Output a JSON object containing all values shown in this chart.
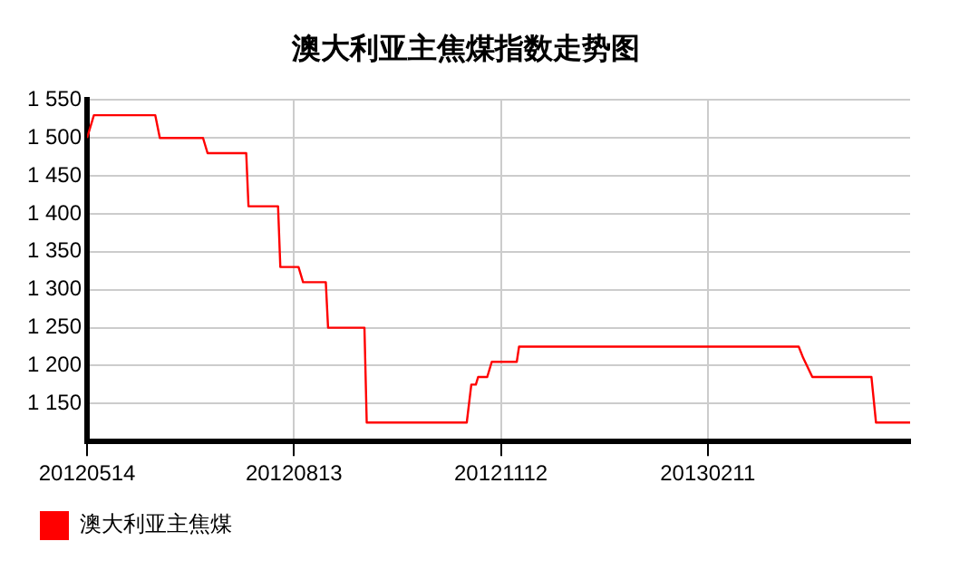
{
  "chart_data": {
    "type": "line",
    "title": "澳大利亚主焦煤指数走势图",
    "x": [
      "2012-05-14",
      "2012-05-17",
      "2012-06-13",
      "2012-06-15",
      "2012-07-04",
      "2012-07-06",
      "2012-07-23",
      "2012-07-24",
      "2012-08-06",
      "2012-08-07",
      "2012-08-15",
      "2012-08-17",
      "2012-08-27",
      "2012-08-28",
      "2012-09-13",
      "2012-09-14",
      "2012-10-28",
      "2012-10-30",
      "2012-11-01",
      "2012-11-02",
      "2012-11-06",
      "2012-11-08",
      "2012-11-19",
      "2012-11-20",
      "2013-03-23",
      "2013-03-25",
      "2013-03-29",
      "2013-04-24",
      "2013-04-26",
      "2013-05-11"
    ],
    "series": [
      {
        "name": "澳大利亚主焦煤",
        "color": "#ff0000",
        "values": [
          1500,
          1530,
          1530,
          1500,
          1500,
          1480,
          1480,
          1410,
          1410,
          1330,
          1330,
          1310,
          1310,
          1250,
          1250,
          1125,
          1125,
          1175,
          1175,
          1185,
          1185,
          1205,
          1205,
          1225,
          1225,
          1210,
          1185,
          1185,
          1125,
          1125
        ]
      }
    ],
    "xlim": [
      "2012-05-14",
      "2013-05-11"
    ],
    "xticks": [
      {
        "value": "2012-05-14",
        "label": "20120514"
      },
      {
        "value": "2012-08-13",
        "label": "20120813"
      },
      {
        "value": "2012-11-12",
        "label": "20121112"
      },
      {
        "value": "2013-02-11",
        "label": "20130211"
      }
    ],
    "ylim": [
      1100,
      1550
    ],
    "yticks": [
      {
        "value": 1150,
        "label": "1 150"
      },
      {
        "value": 1200,
        "label": "1 200"
      },
      {
        "value": 1250,
        "label": "1 250"
      },
      {
        "value": 1300,
        "label": "1 300"
      },
      {
        "value": 1350,
        "label": "1 350"
      },
      {
        "value": 1400,
        "label": "1 400"
      },
      {
        "value": 1450,
        "label": "1 450"
      },
      {
        "value": 1500,
        "label": "1 500"
      },
      {
        "value": 1550,
        "label": "1 550"
      }
    ],
    "grid": true,
    "legend": "bottom left",
    "marker": "none",
    "line_style": "solid"
  }
}
